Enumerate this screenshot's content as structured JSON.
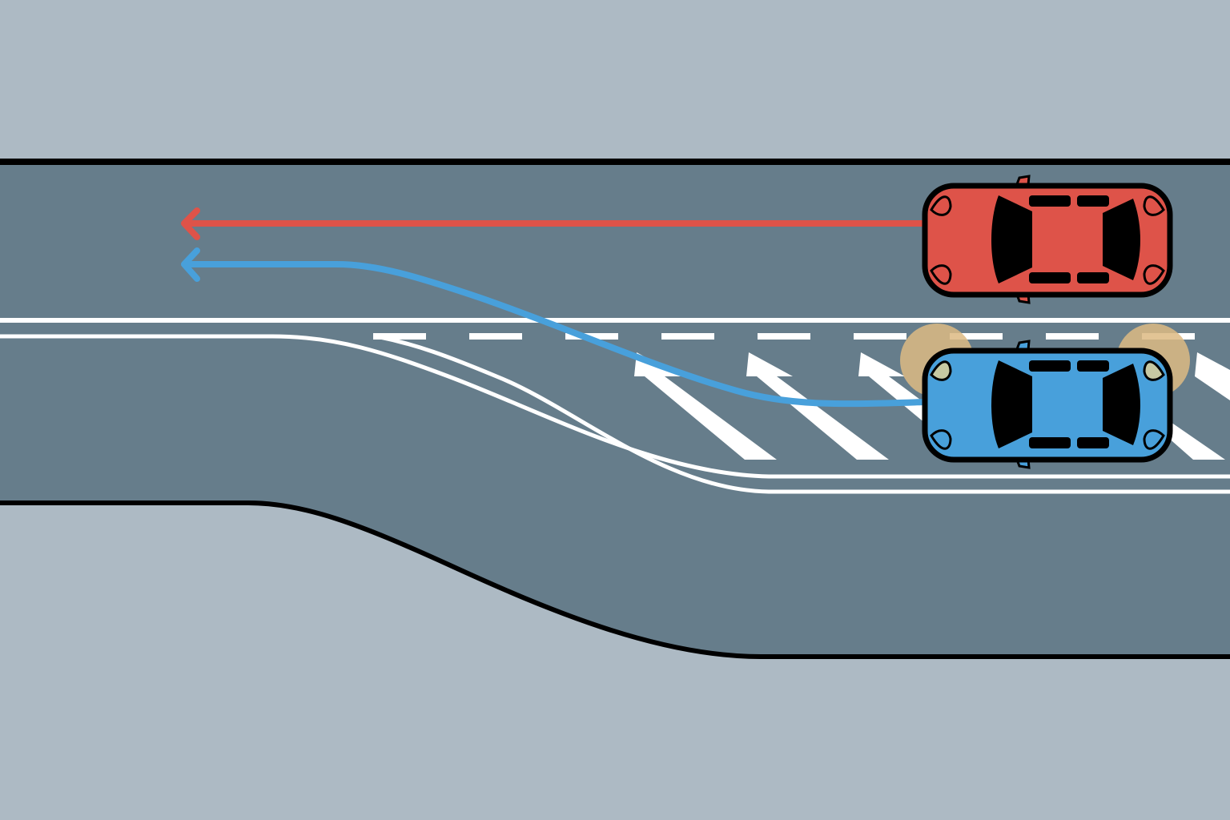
{
  "colors": {
    "verge": "#adbac4",
    "road": "#667d8b",
    "road_edge": "#000000",
    "marking": "#ffffff",
    "red_car": "#de5349",
    "blue_car": "#48a0db",
    "indicator_glow": "#ddba82",
    "glass": "#000000"
  },
  "scene": {
    "red_car": {
      "direction": "left",
      "lane": "through-lane",
      "path": "straight"
    },
    "blue_car": {
      "direction": "left",
      "lane": "merge-lane",
      "path": "merging",
      "indicator": "left-hazard-glow"
    }
  }
}
